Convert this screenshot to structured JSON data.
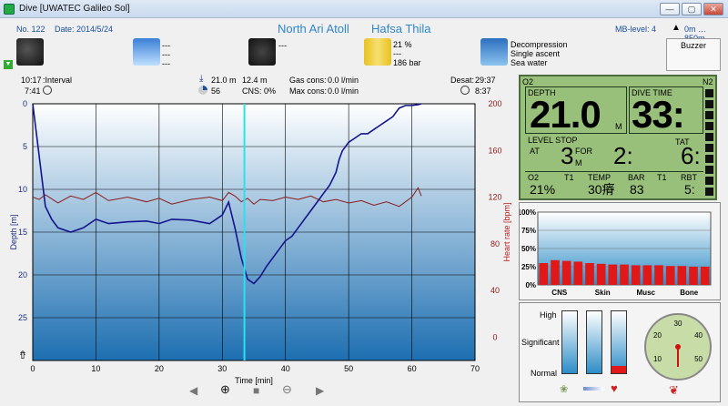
{
  "window": {
    "title": "Dive  [UWATEC Galileo Sol]",
    "btn_min": "—",
    "btn_max": "▢",
    "btn_close": "✕"
  },
  "header": {
    "dive_no": "No. 122",
    "date": "Date: 2014/5/24",
    "location": "North Ari Atoll",
    "site": "Hafsa Thila",
    "mb_level": "MB-level: 4",
    "altitude": "0m … 850m",
    "weather_lines": [
      "---",
      "---",
      "---"
    ],
    "camera_line": "---",
    "gas_lines": [
      "21 %",
      "---",
      "186 bar"
    ],
    "deco_lines": [
      "Decompression",
      "Single ascent",
      "Sea water"
    ],
    "buzzer": "Buzzer"
  },
  "infobar": {
    "interval_time": "10:17",
    "interval_label": ":Interval",
    "interval_value": "7:41",
    "max_depth": "21.0 m",
    "avg_depth": "12.4 m",
    "cns_value": "56",
    "cns": "CNS:   0%",
    "gas_cons": "Gas cons:",
    "gas_cons_val": "0.0 l/min",
    "max_cons": "Max cons:",
    "max_cons_val": "0.0 l/min",
    "desat": "Desat:",
    "desat_val": "29:37",
    "nofly": "8:37"
  },
  "chart_data": {
    "type": "line",
    "xlabel": "Time [min]",
    "ylabel": "Depth [m]",
    "y2label": "Heart rate [bpm]",
    "xlim": [
      0,
      70
    ],
    "ylim": [
      30,
      0
    ],
    "y2lim": [
      -20,
      200
    ],
    "xticks": [
      0,
      10,
      20,
      30,
      40,
      50,
      60,
      70
    ],
    "yticks": [
      0,
      5,
      10,
      15,
      20,
      25
    ],
    "y2ticks": [
      0,
      40,
      80,
      120,
      160,
      200
    ],
    "cursor_x": 33.5,
    "series": [
      {
        "color": "#14148c",
        "x": [
          0,
          0.5,
          1,
          1.5,
          2,
          3,
          4,
          6,
          8,
          10,
          12,
          15,
          18,
          20,
          22,
          25,
          28,
          30,
          31,
          31.5,
          32,
          33,
          34,
          35,
          36,
          37,
          38,
          39,
          40,
          41,
          42,
          43,
          44,
          45,
          46,
          47,
          48,
          48.5,
          49,
          50,
          51,
          52,
          53,
          54,
          55,
          56,
          57,
          58,
          59,
          60,
          61,
          61.5
        ],
        "y": [
          0,
          3,
          6,
          9,
          12,
          13.5,
          14.5,
          15,
          14.5,
          13.5,
          14,
          13.8,
          13.7,
          14,
          13.5,
          13.6,
          14,
          13,
          11.5,
          13,
          14.5,
          18,
          20.5,
          21,
          20.2,
          19,
          18,
          17,
          16,
          15.5,
          14.5,
          13.5,
          12.5,
          11.5,
          10.5,
          9.5,
          8,
          6.5,
          5.5,
          4.5,
          4,
          3.5,
          3.5,
          3,
          2.5,
          2,
          1.5,
          0.5,
          0.2,
          0.2,
          0.1,
          0
        ]
      },
      {
        "color": "#8b1a1a",
        "x": [
          0,
          1,
          2,
          4,
          6,
          8,
          10,
          12,
          15,
          18,
          20,
          22,
          25,
          28,
          30,
          31,
          32,
          33,
          34,
          35,
          36,
          38,
          40,
          42,
          44,
          46,
          48,
          50,
          52,
          54,
          56,
          58,
          60,
          61,
          61.5
        ],
        "y": [
          120,
          118,
          122,
          115,
          121,
          118,
          124,
          117,
          120,
          116,
          119,
          114,
          118,
          120,
          117,
          124,
          121,
          116,
          119,
          114,
          118,
          117,
          120,
          118,
          121,
          116,
          118,
          115,
          117,
          113,
          116,
          112,
          120,
          128,
          121
        ]
      }
    ]
  },
  "lcd": {
    "o2_tag": "O2",
    "n2_tag": "N2",
    "depth_label": "DEPTH",
    "depth_value": "21.0",
    "depth_unit": "M",
    "dive_time_label": "DIVE TIME",
    "dive_time_value": "33:",
    "level_stop_label": "LEVEL STOP",
    "at_label": "AT",
    "stop_depth": "3",
    "stop_unit": "M",
    "for_label": "FOR",
    "stop_time": "2:",
    "tat_label": "TAT",
    "tat_value": "6:",
    "o2_label": "O2",
    "t1_label": "T1",
    "o2_value": "21%",
    "temp_label": "TEMP",
    "temp_value": "30瘠",
    "bar_label": "BAR",
    "bar_t1": "T1",
    "bar_value": "83",
    "rbt_label": "RBT",
    "rbt_value": "5:"
  },
  "tissue": {
    "yticks": [
      "100%",
      "75%",
      "50%",
      "25%",
      "0%"
    ],
    "categories": [
      "CNS",
      "Skin",
      "Musc",
      "Bone"
    ],
    "values": [
      30,
      34,
      33,
      32,
      30,
      29,
      28,
      28,
      27,
      27,
      27,
      26,
      26,
      25,
      25
    ]
  },
  "workload": {
    "labels": [
      "High",
      "Significant",
      "Normal"
    ],
    "bars": [
      0,
      0,
      12
    ]
  },
  "gauge": {
    "ticks": [
      "10",
      "20",
      "30",
      "40",
      "50"
    ],
    "value": 31
  }
}
